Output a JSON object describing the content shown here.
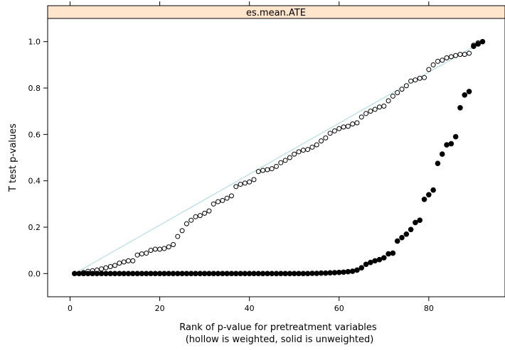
{
  "chart_data": {
    "type": "scatter",
    "panel_title": "es.mean.ATE",
    "xlabel_line1": "Rank of p-value for pretreatment variables",
    "xlabel_line2": "(hollow is weighted, solid is unweighted)",
    "ylabel": "T test p-values",
    "xlim": [
      -5,
      97
    ],
    "ylim": [
      -0.1,
      1.1
    ],
    "x_ticks": [
      0,
      20,
      40,
      60,
      80
    ],
    "y_ticks": [
      0.0,
      0.2,
      0.4,
      0.6,
      0.8,
      1.0
    ],
    "x_tick_labels": [
      "0",
      "20",
      "40",
      "60",
      "80"
    ],
    "y_tick_labels": [
      "0.0",
      "0.2",
      "0.4",
      "0.6",
      "0.8",
      "1.0"
    ],
    "reference_line": {
      "from": [
        1,
        0.0
      ],
      "to": [
        92,
        1.0
      ],
      "color": "#a8d8e0"
    },
    "colors": {
      "strip_fill": "#ffe5cc",
      "weighted": "#000000",
      "unweighted": "#000000"
    },
    "series": [
      {
        "name": "weighted",
        "marker": "hollow",
        "values": [
          0.0,
          0.0,
          0.005,
          0.01,
          0.012,
          0.015,
          0.02,
          0.025,
          0.03,
          0.035,
          0.045,
          0.05,
          0.055,
          0.055,
          0.08,
          0.085,
          0.088,
          0.1,
          0.105,
          0.105,
          0.108,
          0.115,
          0.125,
          0.16,
          0.185,
          0.215,
          0.23,
          0.245,
          0.25,
          0.26,
          0.27,
          0.3,
          0.31,
          0.315,
          0.325,
          0.335,
          0.375,
          0.385,
          0.39,
          0.395,
          0.405,
          0.44,
          0.445,
          0.448,
          0.452,
          0.462,
          0.478,
          0.488,
          0.5,
          0.515,
          0.525,
          0.532,
          0.535,
          0.545,
          0.555,
          0.572,
          0.585,
          0.605,
          0.615,
          0.625,
          0.632,
          0.635,
          0.645,
          0.65,
          0.675,
          0.69,
          0.7,
          0.708,
          0.718,
          0.722,
          0.745,
          0.765,
          0.78,
          0.795,
          0.81,
          0.83,
          0.835,
          0.842,
          0.845,
          0.88,
          0.9,
          0.915,
          0.92,
          0.93,
          0.935,
          0.94,
          0.945,
          0.945,
          0.95,
          0.985,
          0.995,
          1.0
        ]
      },
      {
        "name": "unweighted",
        "marker": "solid",
        "values": [
          0,
          0,
          0,
          0,
          0,
          0,
          0,
          0,
          0,
          0,
          0,
          0,
          0,
          0,
          0,
          0,
          0,
          0,
          0,
          0,
          0,
          0,
          0,
          0,
          0,
          0,
          0,
          0,
          0,
          0,
          0,
          0,
          0,
          0,
          0,
          0,
          0,
          0,
          0,
          0,
          0,
          0,
          0,
          0,
          0,
          0,
          0,
          0,
          0,
          0,
          0,
          0,
          0,
          0.001,
          0.001,
          0.002,
          0.002,
          0.003,
          0.004,
          0.005,
          0.006,
          0.008,
          0.01,
          0.015,
          0.025,
          0.04,
          0.048,
          0.055,
          0.06,
          0.068,
          0.085,
          0.088,
          0.14,
          0.155,
          0.17,
          0.19,
          0.22,
          0.23,
          0.32,
          0.34,
          0.36,
          0.475,
          0.515,
          0.555,
          0.56,
          0.59,
          0.715,
          0.77,
          0.785,
          0.98,
          0.99,
          1.0
        ]
      }
    ]
  }
}
